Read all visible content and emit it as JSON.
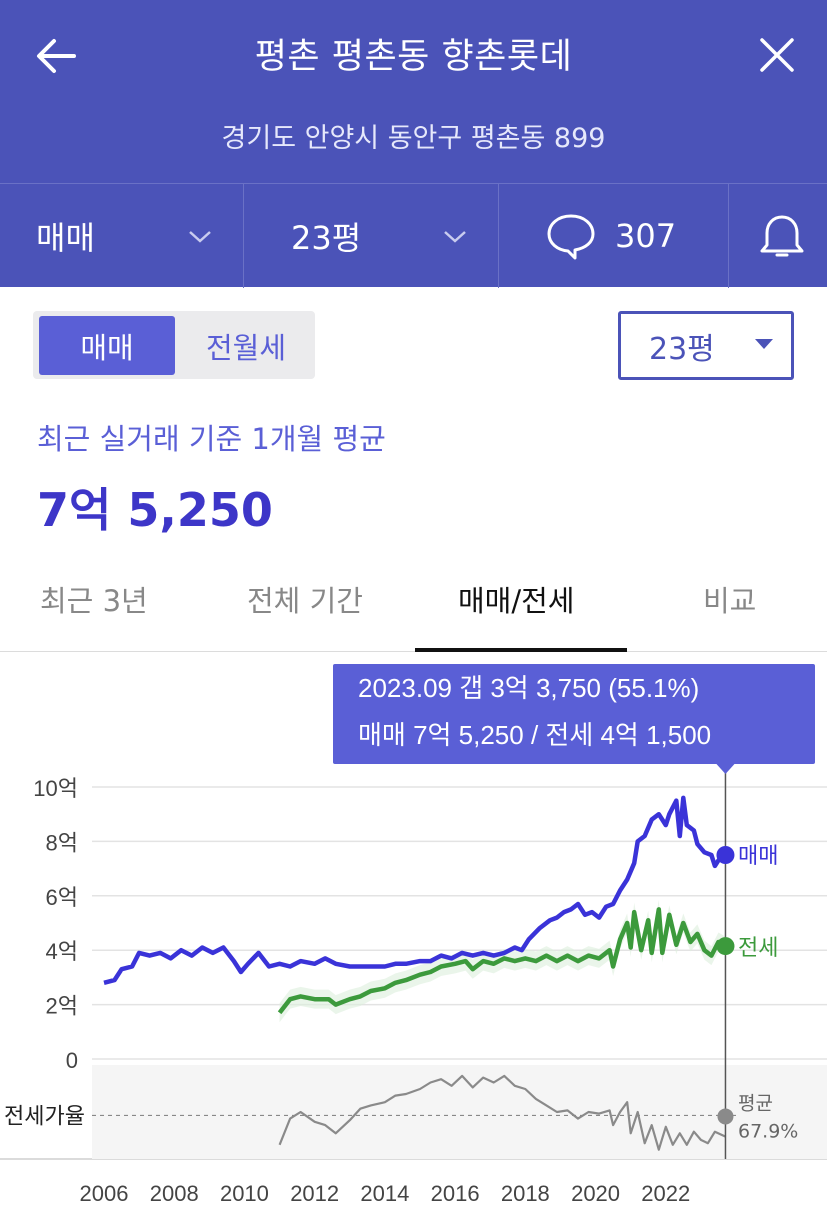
{
  "header": {
    "title": "평촌 평촌동 향촌롯데",
    "address": "경기도 안양시 동안구 평촌동 899",
    "filter_type": "매매",
    "filter_size": "23평",
    "comment_count": "307"
  },
  "controls": {
    "segment_active": "매매",
    "segment_other": "전월세",
    "size_select": "23평"
  },
  "summary": {
    "label": "최근 실거래 기준 1개월 평균",
    "price": "7억 5,250"
  },
  "tabs": [
    {
      "label": "최근 3년",
      "active": false
    },
    {
      "label": "전체 기간",
      "active": false
    },
    {
      "label": "매매/전세",
      "active": true
    },
    {
      "label": "비교",
      "active": false
    }
  ],
  "tooltip": {
    "line1": "2023.09  갭 3억 3,750 (55.1%)",
    "line2": "매매 7억 5,250 / 전세 4억 1,500"
  },
  "colors": {
    "header": "#4b53b8",
    "accent": "#3d36c8",
    "sale": "#3a33d8",
    "jeonse": "#3c9a3c",
    "ratio": "#8a8a8a"
  },
  "chart_data": {
    "type": "line",
    "y_unit": "억",
    "ylim": [
      0,
      10
    ],
    "yticks": [
      {
        "v": 10,
        "label": "10억"
      },
      {
        "v": 8,
        "label": "8억"
      },
      {
        "v": 6,
        "label": "6억"
      },
      {
        "v": 4,
        "label": "4억"
      },
      {
        "v": 2,
        "label": "2억"
      },
      {
        "v": 0,
        "label": "0"
      }
    ],
    "xlim": [
      2006,
      2024
    ],
    "xticks": [
      2006,
      2008,
      2010,
      2012,
      2014,
      2016,
      2018,
      2020,
      2022
    ],
    "grid": true,
    "selected_x": 2023.7,
    "series": [
      {
        "name": "매매",
        "color": "#3a33d8",
        "points": [
          [
            2006.0,
            2.8
          ],
          [
            2006.3,
            2.9
          ],
          [
            2006.5,
            3.3
          ],
          [
            2006.8,
            3.4
          ],
          [
            2007.0,
            3.9
          ],
          [
            2007.3,
            3.8
          ],
          [
            2007.6,
            3.9
          ],
          [
            2007.9,
            3.7
          ],
          [
            2008.2,
            4.0
          ],
          [
            2008.5,
            3.8
          ],
          [
            2008.8,
            4.1
          ],
          [
            2009.1,
            3.9
          ],
          [
            2009.4,
            4.1
          ],
          [
            2009.7,
            3.6
          ],
          [
            2009.9,
            3.2
          ],
          [
            2010.1,
            3.5
          ],
          [
            2010.4,
            3.9
          ],
          [
            2010.7,
            3.4
          ],
          [
            2011.0,
            3.5
          ],
          [
            2011.3,
            3.4
          ],
          [
            2011.6,
            3.6
          ],
          [
            2012.0,
            3.5
          ],
          [
            2012.3,
            3.7
          ],
          [
            2012.6,
            3.5
          ],
          [
            2013.0,
            3.4
          ],
          [
            2013.5,
            3.4
          ],
          [
            2014.0,
            3.4
          ],
          [
            2014.3,
            3.5
          ],
          [
            2014.6,
            3.5
          ],
          [
            2015.0,
            3.6
          ],
          [
            2015.3,
            3.6
          ],
          [
            2015.6,
            3.8
          ],
          [
            2015.9,
            3.7
          ],
          [
            2016.2,
            3.9
          ],
          [
            2016.5,
            3.8
          ],
          [
            2016.8,
            3.9
          ],
          [
            2017.1,
            3.8
          ],
          [
            2017.4,
            3.9
          ],
          [
            2017.7,
            4.1
          ],
          [
            2017.9,
            4.0
          ],
          [
            2018.1,
            4.4
          ],
          [
            2018.4,
            4.8
          ],
          [
            2018.7,
            5.1
          ],
          [
            2018.9,
            5.2
          ],
          [
            2019.1,
            5.4
          ],
          [
            2019.3,
            5.5
          ],
          [
            2019.5,
            5.7
          ],
          [
            2019.7,
            5.3
          ],
          [
            2019.9,
            5.4
          ],
          [
            2020.1,
            5.2
          ],
          [
            2020.3,
            5.6
          ],
          [
            2020.5,
            5.7
          ],
          [
            2020.7,
            6.2
          ],
          [
            2020.9,
            6.6
          ],
          [
            2021.1,
            7.2
          ],
          [
            2021.2,
            8.0
          ],
          [
            2021.4,
            8.2
          ],
          [
            2021.6,
            8.8
          ],
          [
            2021.8,
            9.0
          ],
          [
            2022.0,
            8.6
          ],
          [
            2022.1,
            9.0
          ],
          [
            2022.3,
            9.5
          ],
          [
            2022.4,
            8.2
          ],
          [
            2022.5,
            9.6
          ],
          [
            2022.6,
            8.6
          ],
          [
            2022.8,
            8.4
          ],
          [
            2022.9,
            7.9
          ],
          [
            2023.1,
            7.6
          ],
          [
            2023.3,
            7.5
          ],
          [
            2023.4,
            7.1
          ],
          [
            2023.5,
            7.3
          ],
          [
            2023.7,
            7.5
          ]
        ]
      },
      {
        "name": "전세",
        "color": "#3c9a3c",
        "points": [
          [
            2011.0,
            1.7
          ],
          [
            2011.3,
            2.2
          ],
          [
            2011.6,
            2.3
          ],
          [
            2012.0,
            2.2
          ],
          [
            2012.4,
            2.2
          ],
          [
            2012.6,
            2.0
          ],
          [
            2013.0,
            2.2
          ],
          [
            2013.3,
            2.3
          ],
          [
            2013.6,
            2.5
          ],
          [
            2014.0,
            2.6
          ],
          [
            2014.3,
            2.8
          ],
          [
            2014.6,
            2.9
          ],
          [
            2015.0,
            3.1
          ],
          [
            2015.3,
            3.2
          ],
          [
            2015.6,
            3.4
          ],
          [
            2016.0,
            3.5
          ],
          [
            2016.3,
            3.6
          ],
          [
            2016.5,
            3.3
          ],
          [
            2016.8,
            3.6
          ],
          [
            2017.1,
            3.5
          ],
          [
            2017.4,
            3.7
          ],
          [
            2017.7,
            3.6
          ],
          [
            2018.0,
            3.7
          ],
          [
            2018.3,
            3.6
          ],
          [
            2018.6,
            3.8
          ],
          [
            2018.9,
            3.6
          ],
          [
            2019.2,
            3.8
          ],
          [
            2019.5,
            3.6
          ],
          [
            2019.8,
            3.8
          ],
          [
            2020.1,
            3.7
          ],
          [
            2020.4,
            4.0
          ],
          [
            2020.5,
            3.4
          ],
          [
            2020.7,
            4.4
          ],
          [
            2020.9,
            5.0
          ],
          [
            2021.0,
            4.1
          ],
          [
            2021.1,
            5.4
          ],
          [
            2021.3,
            4.0
          ],
          [
            2021.5,
            5.1
          ],
          [
            2021.6,
            3.9
          ],
          [
            2021.8,
            5.5
          ],
          [
            2021.9,
            3.9
          ],
          [
            2022.1,
            5.3
          ],
          [
            2022.3,
            4.2
          ],
          [
            2022.5,
            5.0
          ],
          [
            2022.7,
            4.3
          ],
          [
            2022.9,
            4.6
          ],
          [
            2023.1,
            4.0
          ],
          [
            2023.3,
            3.8
          ],
          [
            2023.5,
            4.3
          ],
          [
            2023.7,
            4.15
          ]
        ]
      },
      {
        "name": "전세가율",
        "color": "#8a8a8a",
        "avg_label": "평균",
        "avg_value": "67.9%",
        "avg": 67.9,
        "ylim": [
          45,
          95
        ],
        "points": [
          [
            2011.0,
            50
          ],
          [
            2011.3,
            66
          ],
          [
            2011.6,
            70
          ],
          [
            2012.0,
            64
          ],
          [
            2012.3,
            62
          ],
          [
            2012.6,
            57
          ],
          [
            2013.0,
            65
          ],
          [
            2013.3,
            72
          ],
          [
            2013.6,
            74
          ],
          [
            2014.0,
            76
          ],
          [
            2014.3,
            80
          ],
          [
            2014.6,
            81
          ],
          [
            2015.0,
            84
          ],
          [
            2015.3,
            88
          ],
          [
            2015.6,
            90
          ],
          [
            2015.9,
            86
          ],
          [
            2016.2,
            92
          ],
          [
            2016.5,
            85
          ],
          [
            2016.8,
            91
          ],
          [
            2017.1,
            88
          ],
          [
            2017.4,
            92
          ],
          [
            2017.7,
            86
          ],
          [
            2018.0,
            84
          ],
          [
            2018.3,
            78
          ],
          [
            2018.6,
            74
          ],
          [
            2018.9,
            70
          ],
          [
            2019.2,
            71
          ],
          [
            2019.5,
            66
          ],
          [
            2019.8,
            70
          ],
          [
            2020.1,
            69
          ],
          [
            2020.4,
            71
          ],
          [
            2020.5,
            62
          ],
          [
            2020.7,
            70
          ],
          [
            2020.9,
            76
          ],
          [
            2021.0,
            57
          ],
          [
            2021.2,
            70
          ],
          [
            2021.4,
            51
          ],
          [
            2021.6,
            62
          ],
          [
            2021.8,
            47
          ],
          [
            2022.0,
            61
          ],
          [
            2022.2,
            50
          ],
          [
            2022.4,
            57
          ],
          [
            2022.6,
            50
          ],
          [
            2022.8,
            58
          ],
          [
            2023.0,
            53
          ],
          [
            2023.2,
            51
          ],
          [
            2023.4,
            58
          ],
          [
            2023.7,
            55
          ]
        ]
      }
    ]
  }
}
